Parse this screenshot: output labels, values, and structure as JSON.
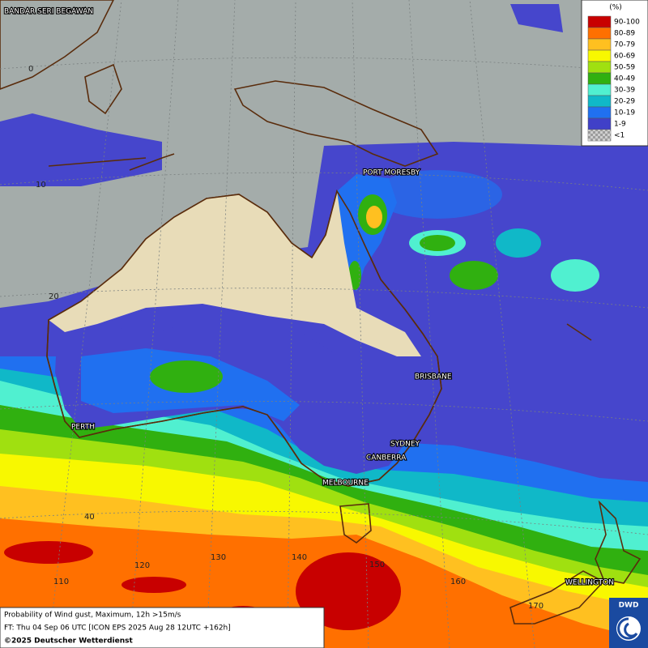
{
  "map": {
    "place_labels": [
      "BANDAR SERI BEGAWAN",
      "PORT MORESBY",
      "BRISBANE",
      "PERTH",
      "SYDNEY",
      "CANBERRA",
      "MELBOURNE",
      "WELLINGTON"
    ],
    "grid_labels": [
      "0",
      "10",
      "20",
      "40",
      "110",
      "120",
      "130",
      "140",
      "150",
      "160",
      "170"
    ]
  },
  "legend": {
    "title": "(%)",
    "entries": [
      {
        "label": "90-100",
        "color": "#c80000"
      },
      {
        "label": "80-89",
        "color": "#ff7000"
      },
      {
        "label": "70-79",
        "color": "#ffc020"
      },
      {
        "label": "60-69",
        "color": "#f8f800"
      },
      {
        "label": "50-59",
        "color": "#a0e010"
      },
      {
        "label": "40-49",
        "color": "#30b010"
      },
      {
        "label": "30-39",
        "color": "#50f0d0"
      },
      {
        "label": "20-29",
        "color": "#10b8c8"
      },
      {
        "label": "10-19",
        "color": "#2070f0"
      },
      {
        "label": "1-9",
        "color": "#4040c8"
      },
      {
        "label": "<1",
        "color": "#b8b8b8"
      }
    ]
  },
  "caption": {
    "lines": [
      "Probability of Wind gust, Maximum, 12h >15m/s",
      "FT: Thu 04 Sep 06 UTC [ICON EPS 2025 Aug 28 12UTC +162h]"
    ],
    "copyright": "©2025 Deutscher Wetterdienst"
  },
  "logo": "DWD"
}
